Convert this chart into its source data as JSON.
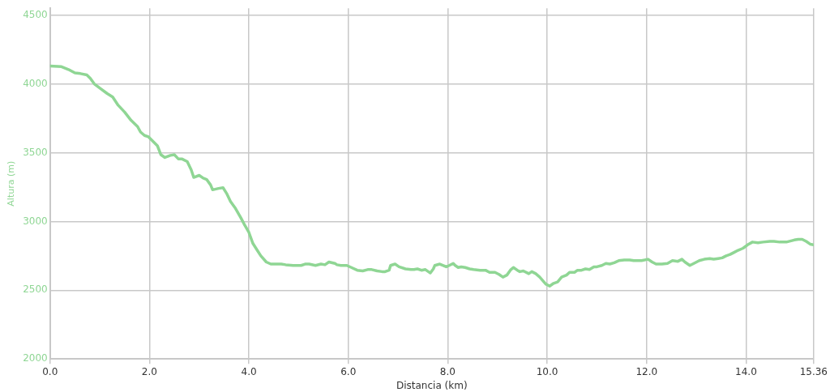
{
  "chart_data": {
    "type": "line",
    "xlabel": "Distancia (km)",
    "ylabel": "Altura (m)",
    "xlim": [
      0,
      15.36
    ],
    "ylim": [
      2000,
      4550
    ],
    "xticks": [
      {
        "value": 0,
        "label": "0.0"
      },
      {
        "value": 2,
        "label": "2.0"
      },
      {
        "value": 4,
        "label": "4.0"
      },
      {
        "value": 6,
        "label": "6.0"
      },
      {
        "value": 8,
        "label": "8.0"
      },
      {
        "value": 10,
        "label": "10.0"
      },
      {
        "value": 12,
        "label": "12.0"
      },
      {
        "value": 14,
        "label": "14.0"
      },
      15.36
    ],
    "yticks": [
      2000,
      2500,
      3000,
      3500,
      4000,
      4500
    ],
    "grid": true,
    "marker": "none",
    "line_style": "solid",
    "series": [
      {
        "color": "#8fd694",
        "x": [
          0,
          0.23,
          0.37,
          0.5,
          0.61,
          0.74,
          0.81,
          0.89,
          1.02,
          1.15,
          1.26,
          1.37,
          1.5,
          1.63,
          1.76,
          1.82,
          1.9,
          1.98,
          2.05,
          2.16,
          2.23,
          2.31,
          2.42,
          2.5,
          2.58,
          2.65,
          2.76,
          2.84,
          2.89,
          3.0,
          3.08,
          3.15,
          3.23,
          3.27,
          3.39,
          3.48,
          3.55,
          3.63,
          3.73,
          3.84,
          3.92,
          4.0,
          4.08,
          4.16,
          4.24,
          4.35,
          4.44,
          4.56,
          4.65,
          4.74,
          4.89,
          5.0,
          5.05,
          5.13,
          5.21,
          5.34,
          5.45,
          5.53,
          5.61,
          5.73,
          5.77,
          5.85,
          5.97,
          6.06,
          6.18,
          6.29,
          6.39,
          6.47,
          6.58,
          6.68,
          6.74,
          6.82,
          6.85,
          6.94,
          7.02,
          7.15,
          7.26,
          7.32,
          7.39,
          7.47,
          7.55,
          7.65,
          7.71,
          7.74,
          7.84,
          7.97,
          8.03,
          8.11,
          8.15,
          8.21,
          8.27,
          8.35,
          8.44,
          8.52,
          8.65,
          8.76,
          8.84,
          8.95,
          9.03,
          9.11,
          9.19,
          9.27,
          9.32,
          9.4,
          9.45,
          9.52,
          9.63,
          9.69,
          9.77,
          9.85,
          9.97,
          10.05,
          10.13,
          10.21,
          10.29,
          10.39,
          10.45,
          10.55,
          10.61,
          10.69,
          10.77,
          10.85,
          10.94,
          11.0,
          11.1,
          11.18,
          11.26,
          11.35,
          11.44,
          11.55,
          11.66,
          11.74,
          11.9,
          12.03,
          12.11,
          12.19,
          12.31,
          12.42,
          12.52,
          12.63,
          12.71,
          12.77,
          12.87,
          12.95,
          13.06,
          13.16,
          13.27,
          13.35,
          13.44,
          13.52,
          13.6,
          13.68,
          13.76,
          13.84,
          13.94,
          14.03,
          14.13,
          14.24,
          14.34,
          14.48,
          14.56,
          14.68,
          14.81,
          14.97,
          15.05,
          15.13,
          15.21,
          15.29,
          15.36
        ],
        "values": [
          4130,
          4125,
          4105,
          4080,
          4075,
          4065,
          4040,
          4000,
          3965,
          3930,
          3905,
          3845,
          3795,
          3735,
          3690,
          3650,
          3625,
          3615,
          3590,
          3550,
          3485,
          3465,
          3480,
          3485,
          3455,
          3455,
          3435,
          3375,
          3320,
          3335,
          3315,
          3305,
          3265,
          3230,
          3240,
          3245,
          3205,
          3145,
          3095,
          3025,
          2970,
          2920,
          2840,
          2795,
          2750,
          2705,
          2690,
          2690,
          2690,
          2685,
          2680,
          2680,
          2680,
          2690,
          2690,
          2680,
          2690,
          2685,
          2705,
          2695,
          2685,
          2680,
          2680,
          2665,
          2645,
          2640,
          2650,
          2650,
          2640,
          2635,
          2635,
          2645,
          2680,
          2690,
          2670,
          2655,
          2650,
          2650,
          2655,
          2645,
          2650,
          2625,
          2655,
          2680,
          2690,
          2670,
          2680,
          2695,
          2680,
          2665,
          2670,
          2665,
          2655,
          2650,
          2645,
          2645,
          2630,
          2630,
          2615,
          2595,
          2610,
          2650,
          2665,
          2645,
          2635,
          2640,
          2620,
          2635,
          2620,
          2595,
          2545,
          2530,
          2550,
          2560,
          2595,
          2610,
          2630,
          2630,
          2645,
          2645,
          2655,
          2650,
          2670,
          2670,
          2680,
          2695,
          2690,
          2700,
          2715,
          2720,
          2720,
          2715,
          2715,
          2725,
          2705,
          2690,
          2690,
          2695,
          2715,
          2710,
          2725,
          2705,
          2680,
          2695,
          2715,
          2725,
          2730,
          2725,
          2730,
          2735,
          2750,
          2760,
          2775,
          2790,
          2805,
          2830,
          2850,
          2845,
          2850,
          2855,
          2855,
          2850,
          2850,
          2865,
          2870,
          2870,
          2855,
          2835,
          2830
        ]
      }
    ]
  }
}
